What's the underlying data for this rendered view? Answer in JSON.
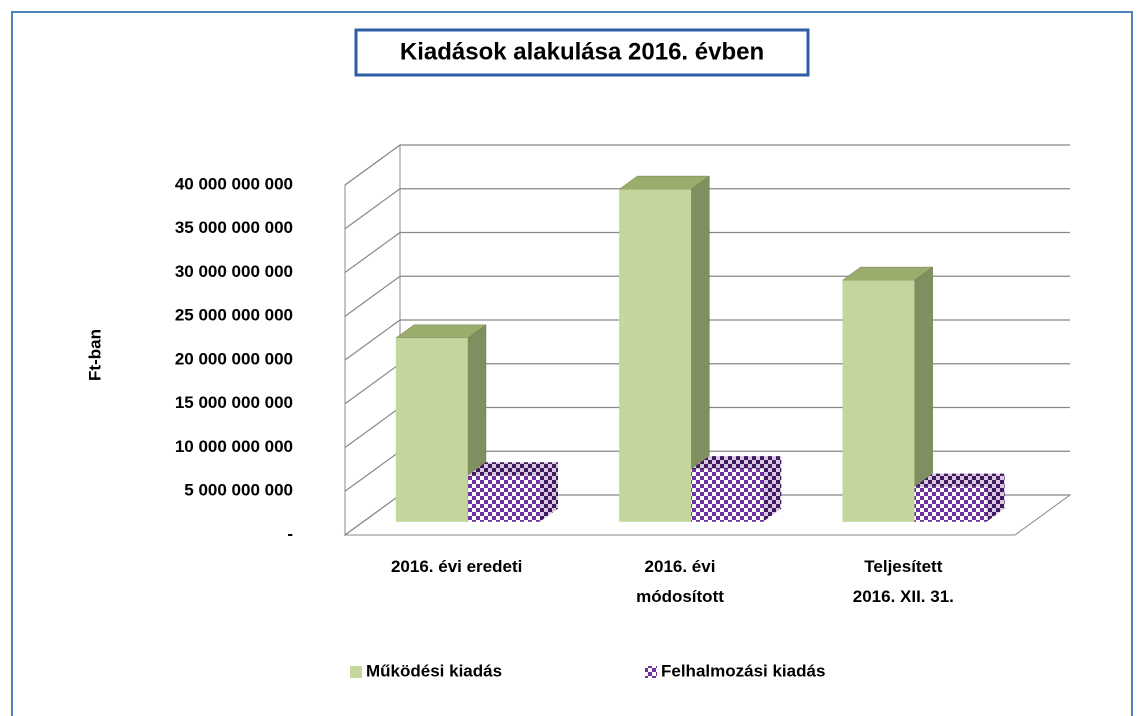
{
  "chart_data": {
    "type": "bar3d",
    "title": "Kiadások  alakulása 2016. évben",
    "y_label": "Ft-ban",
    "categories": [
      "2016. évi eredeti",
      "2016. évi\nmódosított",
      "Teljesített\n2016. XII. 31."
    ],
    "series": [
      {
        "name": "Működési kiadás",
        "color": "#c3d69b",
        "values": [
          21000000000,
          38000000000,
          27600000000
        ]
      },
      {
        "name": "Felhalmozási kiadás",
        "color": "#7030a0",
        "pattern": "checker",
        "values": [
          5300000000,
          6000000000,
          4000000000
        ]
      }
    ],
    "ylim": [
      0,
      40000000000
    ],
    "yticks": [
      {
        "value": 0,
        "label": "-"
      },
      {
        "value": 5000000000,
        "label": "5 000 000 000"
      },
      {
        "value": 10000000000,
        "label": "10 000 000 000"
      },
      {
        "value": 15000000000,
        "label": "15 000 000 000"
      },
      {
        "value": 20000000000,
        "label": "20 000 000 000"
      },
      {
        "value": 25000000000,
        "label": "25 000 000 000"
      },
      {
        "value": 30000000000,
        "label": "30 000 000 000"
      },
      {
        "value": 35000000000,
        "label": "35 000 000 000"
      },
      {
        "value": 40000000000,
        "label": "40 000 000 000"
      }
    ],
    "grid": true,
    "legend": "bottom"
  }
}
